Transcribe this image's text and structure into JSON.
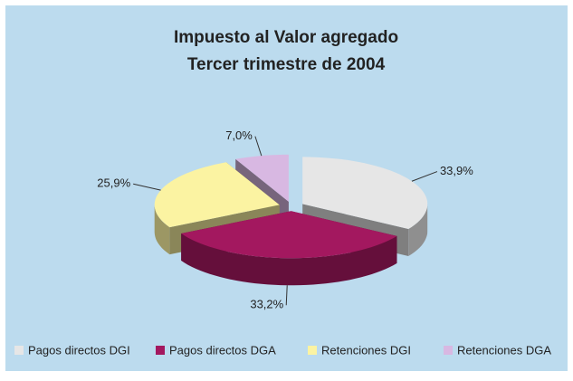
{
  "chart_data": {
    "type": "pie3d",
    "title": "Impuesto al Valor agregado",
    "subtitle": "Tercer trimestre de 2004",
    "categories": [
      "Pagos directos DGI",
      "Pagos directos DGA",
      "Retenciones DGI",
      "Retenciones DGA"
    ],
    "values": [
      33.9,
      33.2,
      25.9,
      7.0
    ],
    "value_labels": [
      "33,9%",
      "33,2%",
      "25,9%",
      "7,0%"
    ],
    "colors": [
      "#e6e6e6",
      "#a3185f",
      "#fbf3a2",
      "#d8b8e2"
    ],
    "legend": "bottom"
  }
}
